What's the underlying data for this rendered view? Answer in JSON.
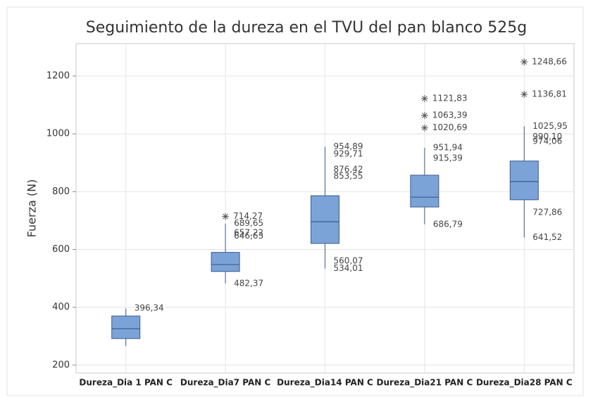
{
  "chart_data": {
    "type": "box",
    "title": "Seguimiento de la dureza en el TVU del pan blanco 525g",
    "y_label": "Fuerza (N)",
    "categories": [
      "Dureza_Dia 1 PAN C",
      "Dureza_Dia7 PAN C",
      "Dureza_Dia14 PAN C",
      "Dureza_Dia21 PAN C",
      "Dureza_Dia28 PAN C"
    ],
    "color": "#7ba3d8",
    "edge_color": "#3b5b8c",
    "ylim": [
      173,
      1312
    ],
    "yticks": [
      200,
      400,
      600,
      800,
      1000,
      1200
    ],
    "grid": true,
    "boxes": [
      {
        "whisker_low": 266,
        "q1": 292,
        "median": 326,
        "q3": 370,
        "whisker_high": 396.34,
        "outliers": [],
        "outlier_labels": [],
        "point_values": [
          396.34
        ],
        "point_labels": [
          "396,34"
        ]
      },
      {
        "whisker_low": 482.37,
        "q1": 524,
        "median": 548,
        "q3": 590,
        "whisker_high": 689.65,
        "outliers": [
          714.27
        ],
        "outlier_labels": [
          "714,27"
        ],
        "point_values": [
          689.65,
          657.22,
          646.63,
          482.37
        ],
        "point_labels": [
          "689,65",
          "657,22",
          "646,63",
          "482,37"
        ]
      },
      {
        "whisker_low": 534.01,
        "q1": 621,
        "median": 696,
        "q3": 786,
        "whisker_high": 954.89,
        "outliers": [],
        "outlier_labels": [],
        "point_values": [
          954.89,
          929.71,
          876.42,
          853.55,
          560.07,
          534.01
        ],
        "point_labels": [
          "954,89",
          "929,71",
          "876,42",
          "853,55",
          "560,07",
          "534,01"
        ]
      },
      {
        "whisker_low": 686.79,
        "q1": 747,
        "median": 781,
        "q3": 857,
        "whisker_high": 951.94,
        "outliers": [
          1121.83,
          1063.39,
          1020.69
        ],
        "outlier_labels": [
          "1121,83",
          "1063,39",
          "1020,69"
        ],
        "point_values": [
          951.94,
          915.39,
          686.79
        ],
        "point_labels": [
          "951,94",
          "915,39",
          "686,79"
        ]
      },
      {
        "whisker_low": 641.52,
        "q1": 772,
        "median": 835,
        "q3": 906,
        "whisker_high": 1025.95,
        "outliers": [
          1248.66,
          1136.81
        ],
        "outlier_labels": [
          "1248,66",
          "1136,81"
        ],
        "point_values": [
          1025.95,
          990.1,
          974.06,
          727.86,
          641.52
        ],
        "point_labels": [
          "1025,95",
          "990,10",
          "974,06",
          "727,86",
          "641,52"
        ]
      }
    ]
  }
}
